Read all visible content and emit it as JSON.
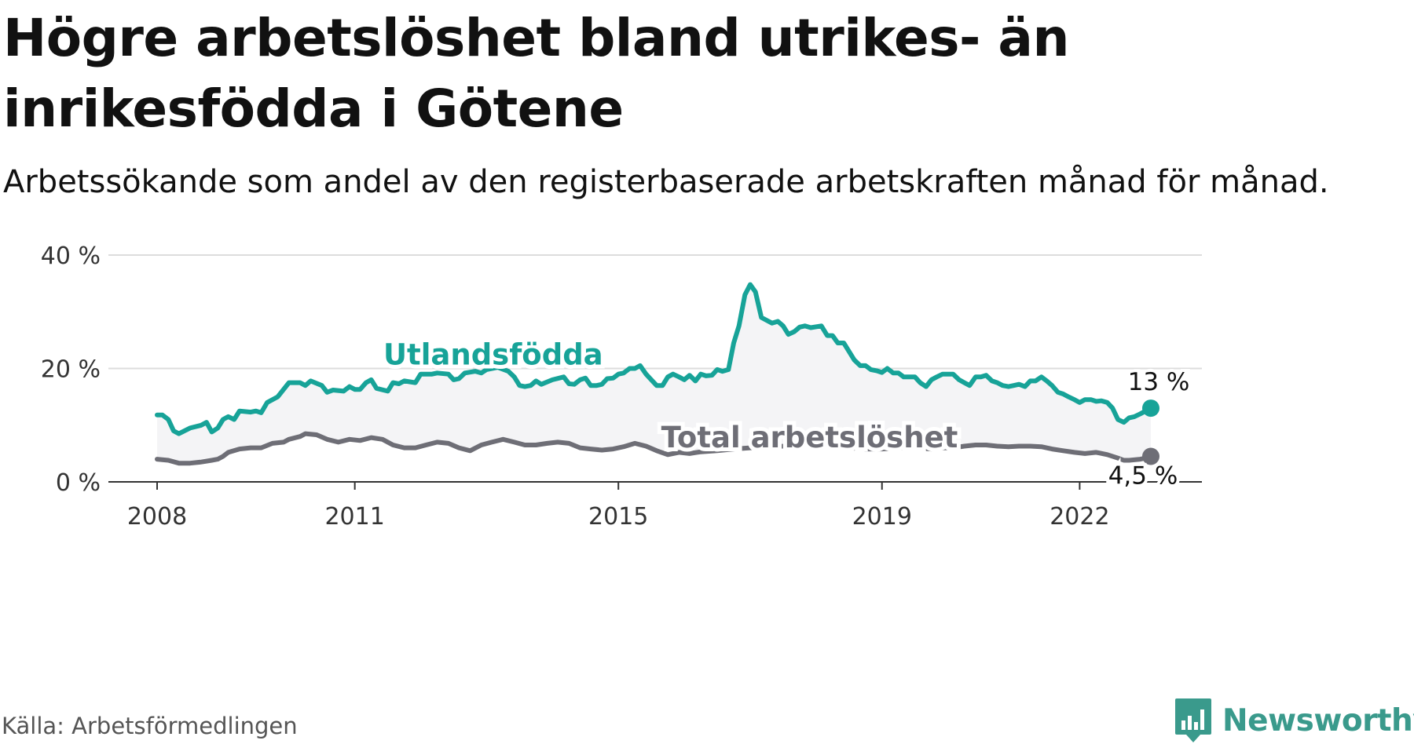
{
  "header": {
    "title": "Högre arbetslöshet bland utrikes- än inrikesfödda i Götene",
    "subtitle": "Arbetssökande som andel av den registerbaserade arbetskraften månad för månad."
  },
  "footer": {
    "source": "Källa: Arbetsförmedlingen",
    "brand": "Newsworthy"
  },
  "colors": {
    "foreign": "#17a398",
    "total": "#6e6e76",
    "band": "#f4f4f6",
    "grid": "#dcdcdc",
    "axis": "#333333",
    "brand": "#3a9a8c"
  },
  "chart_data": {
    "type": "line",
    "title": "Högre arbetslöshet bland utrikes- än inrikesfödda i Götene",
    "xlabel": "",
    "ylabel": "",
    "xlim": [
      2008.0,
      2023.8
    ],
    "ylim": [
      0,
      40
    ],
    "yticks": [
      0,
      20,
      40
    ],
    "ytick_labels": [
      "0 %",
      "20 %",
      "40 %"
    ],
    "xticks": [
      2008,
      2011,
      2015,
      2019,
      2022
    ],
    "xtick_labels": [
      "2008",
      "2011",
      "2015",
      "2019",
      "2022"
    ],
    "grid": true,
    "legend": "inline labels",
    "series": [
      {
        "name": "Utlandsfödda",
        "key": "foreign",
        "end_label": "13 %",
        "points": [
          [
            2008.0,
            11.8
          ],
          [
            2008.08,
            11.8
          ],
          [
            2008.17,
            11.0
          ],
          [
            2008.25,
            9.0
          ],
          [
            2008.33,
            8.5
          ],
          [
            2008.5,
            9.5
          ],
          [
            2008.67,
            10.0
          ],
          [
            2008.75,
            10.5
          ],
          [
            2008.83,
            8.8
          ],
          [
            2008.92,
            9.5
          ],
          [
            2009.0,
            11.0
          ],
          [
            2009.08,
            11.5
          ],
          [
            2009.17,
            11.0
          ],
          [
            2009.25,
            12.5
          ],
          [
            2009.42,
            12.3
          ],
          [
            2009.5,
            12.5
          ],
          [
            2009.58,
            12.2
          ],
          [
            2009.67,
            14.0
          ],
          [
            2009.83,
            15.0
          ],
          [
            2010.0,
            17.5
          ],
          [
            2010.17,
            17.5
          ],
          [
            2010.25,
            17.0
          ],
          [
            2010.33,
            17.8
          ],
          [
            2010.5,
            17.0
          ],
          [
            2010.58,
            15.8
          ],
          [
            2010.67,
            16.2
          ],
          [
            2010.83,
            16.0
          ],
          [
            2010.92,
            16.8
          ],
          [
            2011.0,
            16.3
          ],
          [
            2011.08,
            16.3
          ],
          [
            2011.17,
            17.5
          ],
          [
            2011.25,
            18.0
          ],
          [
            2011.33,
            16.5
          ],
          [
            2011.5,
            16.0
          ],
          [
            2011.58,
            17.5
          ],
          [
            2011.67,
            17.3
          ],
          [
            2011.75,
            17.8
          ],
          [
            2011.92,
            17.5
          ],
          [
            2012.0,
            19.0
          ],
          [
            2012.17,
            19.0
          ],
          [
            2012.25,
            19.2
          ],
          [
            2012.42,
            19.0
          ],
          [
            2012.5,
            18.0
          ],
          [
            2012.58,
            18.2
          ],
          [
            2012.67,
            19.2
          ],
          [
            2012.83,
            19.5
          ],
          [
            2012.92,
            19.2
          ],
          [
            2013.0,
            19.8
          ],
          [
            2013.17,
            20.2
          ],
          [
            2013.33,
            19.5
          ],
          [
            2013.42,
            18.5
          ],
          [
            2013.5,
            17.0
          ],
          [
            2013.58,
            16.8
          ],
          [
            2013.67,
            17.0
          ],
          [
            2013.75,
            17.8
          ],
          [
            2013.83,
            17.2
          ],
          [
            2014.0,
            18.0
          ],
          [
            2014.17,
            18.5
          ],
          [
            2014.25,
            17.3
          ],
          [
            2014.33,
            17.2
          ],
          [
            2014.42,
            18.0
          ],
          [
            2014.5,
            18.3
          ],
          [
            2014.58,
            17.0
          ],
          [
            2014.67,
            17.0
          ],
          [
            2014.75,
            17.2
          ],
          [
            2014.83,
            18.2
          ],
          [
            2014.92,
            18.3
          ],
          [
            2015.0,
            19.0
          ],
          [
            2015.08,
            19.2
          ],
          [
            2015.17,
            20.0
          ],
          [
            2015.25,
            20.0
          ],
          [
            2015.33,
            20.5
          ],
          [
            2015.42,
            19.0
          ],
          [
            2015.5,
            18.0
          ],
          [
            2015.58,
            17.0
          ],
          [
            2015.67,
            17.0
          ],
          [
            2015.75,
            18.5
          ],
          [
            2015.83,
            19.0
          ],
          [
            2015.92,
            18.5
          ],
          [
            2016.0,
            18.0
          ],
          [
            2016.08,
            18.8
          ],
          [
            2016.17,
            17.8
          ],
          [
            2016.25,
            19.0
          ],
          [
            2016.33,
            18.7
          ],
          [
            2016.42,
            18.8
          ],
          [
            2016.5,
            19.8
          ],
          [
            2016.58,
            19.5
          ],
          [
            2016.67,
            19.8
          ],
          [
            2016.75,
            24.5
          ],
          [
            2016.83,
            27.5
          ],
          [
            2016.92,
            33.0
          ],
          [
            2017.0,
            34.8
          ],
          [
            2017.08,
            33.5
          ],
          [
            2017.17,
            29.0
          ],
          [
            2017.25,
            28.5
          ],
          [
            2017.33,
            28.0
          ],
          [
            2017.42,
            28.3
          ],
          [
            2017.5,
            27.5
          ],
          [
            2017.58,
            26.0
          ],
          [
            2017.67,
            26.5
          ],
          [
            2017.75,
            27.3
          ],
          [
            2017.83,
            27.5
          ],
          [
            2017.92,
            27.2
          ],
          [
            2018.08,
            27.5
          ],
          [
            2018.17,
            25.8
          ],
          [
            2018.25,
            25.8
          ],
          [
            2018.33,
            24.5
          ],
          [
            2018.42,
            24.5
          ],
          [
            2018.5,
            23.0
          ],
          [
            2018.58,
            21.5
          ],
          [
            2018.67,
            20.5
          ],
          [
            2018.75,
            20.5
          ],
          [
            2018.83,
            19.8
          ],
          [
            2018.92,
            19.6
          ],
          [
            2019.0,
            19.3
          ],
          [
            2019.08,
            20.0
          ],
          [
            2019.17,
            19.2
          ],
          [
            2019.25,
            19.2
          ],
          [
            2019.33,
            18.5
          ],
          [
            2019.5,
            18.5
          ],
          [
            2019.58,
            17.5
          ],
          [
            2019.67,
            16.8
          ],
          [
            2019.75,
            18.0
          ],
          [
            2019.83,
            18.5
          ],
          [
            2019.92,
            19.0
          ],
          [
            2020.08,
            19.0
          ],
          [
            2020.17,
            18.0
          ],
          [
            2020.25,
            17.5
          ],
          [
            2020.33,
            17.0
          ],
          [
            2020.42,
            18.5
          ],
          [
            2020.5,
            18.5
          ],
          [
            2020.58,
            18.8
          ],
          [
            2020.67,
            17.8
          ],
          [
            2020.75,
            17.5
          ],
          [
            2020.83,
            17.0
          ],
          [
            2020.92,
            16.8
          ],
          [
            2021.0,
            17.0
          ],
          [
            2021.08,
            17.2
          ],
          [
            2021.17,
            16.8
          ],
          [
            2021.25,
            17.8
          ],
          [
            2021.33,
            17.8
          ],
          [
            2021.42,
            18.5
          ],
          [
            2021.5,
            17.8
          ],
          [
            2021.58,
            17.0
          ],
          [
            2021.67,
            15.8
          ],
          [
            2021.75,
            15.5
          ],
          [
            2021.83,
            15.0
          ],
          [
            2021.92,
            14.5
          ],
          [
            2022.0,
            14.0
          ],
          [
            2022.08,
            14.5
          ],
          [
            2022.17,
            14.5
          ],
          [
            2022.25,
            14.2
          ],
          [
            2022.33,
            14.3
          ],
          [
            2022.42,
            14.0
          ],
          [
            2022.5,
            13.0
          ],
          [
            2022.58,
            11.0
          ],
          [
            2022.67,
            10.5
          ],
          [
            2022.75,
            11.3
          ],
          [
            2022.83,
            11.5
          ],
          [
            2022.92,
            12.0
          ],
          [
            2023.0,
            12.5
          ],
          [
            2023.08,
            13.0
          ]
        ]
      },
      {
        "name": "Total arbetslöshet",
        "key": "total",
        "end_label": "4,5 %",
        "points": [
          [
            2008.0,
            4.0
          ],
          [
            2008.17,
            3.8
          ],
          [
            2008.33,
            3.3
          ],
          [
            2008.5,
            3.3
          ],
          [
            2008.67,
            3.5
          ],
          [
            2008.83,
            3.8
          ],
          [
            2008.92,
            4.0
          ],
          [
            2009.0,
            4.5
          ],
          [
            2009.08,
            5.2
          ],
          [
            2009.25,
            5.8
          ],
          [
            2009.42,
            6.0
          ],
          [
            2009.58,
            6.0
          ],
          [
            2009.75,
            6.8
          ],
          [
            2009.92,
            7.0
          ],
          [
            2010.0,
            7.5
          ],
          [
            2010.17,
            8.0
          ],
          [
            2010.25,
            8.5
          ],
          [
            2010.42,
            8.3
          ],
          [
            2010.58,
            7.5
          ],
          [
            2010.75,
            7.0
          ],
          [
            2010.92,
            7.5
          ],
          [
            2011.08,
            7.3
          ],
          [
            2011.25,
            7.8
          ],
          [
            2011.42,
            7.5
          ],
          [
            2011.58,
            6.5
          ],
          [
            2011.75,
            6.0
          ],
          [
            2011.92,
            6.0
          ],
          [
            2012.08,
            6.5
          ],
          [
            2012.25,
            7.0
          ],
          [
            2012.42,
            6.8
          ],
          [
            2012.58,
            6.0
          ],
          [
            2012.75,
            5.5
          ],
          [
            2012.92,
            6.5
          ],
          [
            2013.08,
            7.0
          ],
          [
            2013.25,
            7.5
          ],
          [
            2013.42,
            7.0
          ],
          [
            2013.58,
            6.5
          ],
          [
            2013.75,
            6.5
          ],
          [
            2013.92,
            6.8
          ],
          [
            2014.08,
            7.0
          ],
          [
            2014.25,
            6.8
          ],
          [
            2014.42,
            6.0
          ],
          [
            2014.58,
            5.8
          ],
          [
            2014.75,
            5.6
          ],
          [
            2014.92,
            5.8
          ],
          [
            2015.08,
            6.2
          ],
          [
            2015.25,
            6.8
          ],
          [
            2015.42,
            6.3
          ],
          [
            2015.58,
            5.5
          ],
          [
            2015.75,
            4.8
          ],
          [
            2015.92,
            5.2
          ],
          [
            2016.08,
            5.0
          ],
          [
            2016.25,
            5.3
          ],
          [
            2016.5,
            5.5
          ],
          [
            2016.75,
            5.8
          ],
          [
            2017.0,
            6.0
          ],
          [
            2017.25,
            6.2
          ],
          [
            2017.5,
            6.3
          ],
          [
            2017.75,
            6.5
          ],
          [
            2018.0,
            6.5
          ],
          [
            2018.25,
            6.2
          ],
          [
            2018.5,
            6.0
          ],
          [
            2018.75,
            5.8
          ],
          [
            2019.0,
            5.8
          ],
          [
            2019.25,
            6.0
          ],
          [
            2019.5,
            6.0
          ],
          [
            2019.75,
            5.8
          ],
          [
            2019.92,
            6.0
          ],
          [
            2020.08,
            6.0
          ],
          [
            2020.25,
            6.3
          ],
          [
            2020.42,
            6.5
          ],
          [
            2020.58,
            6.5
          ],
          [
            2020.75,
            6.3
          ],
          [
            2020.92,
            6.2
          ],
          [
            2021.08,
            6.3
          ],
          [
            2021.25,
            6.3
          ],
          [
            2021.42,
            6.2
          ],
          [
            2021.58,
            5.8
          ],
          [
            2021.75,
            5.5
          ],
          [
            2021.92,
            5.2
          ],
          [
            2022.08,
            5.0
          ],
          [
            2022.25,
            5.2
          ],
          [
            2022.42,
            4.8
          ],
          [
            2022.58,
            4.2
          ],
          [
            2022.67,
            3.8
          ],
          [
            2022.75,
            3.8
          ],
          [
            2022.92,
            4.0
          ],
          [
            2023.0,
            4.2
          ],
          [
            2023.08,
            4.5
          ]
        ]
      }
    ]
  }
}
